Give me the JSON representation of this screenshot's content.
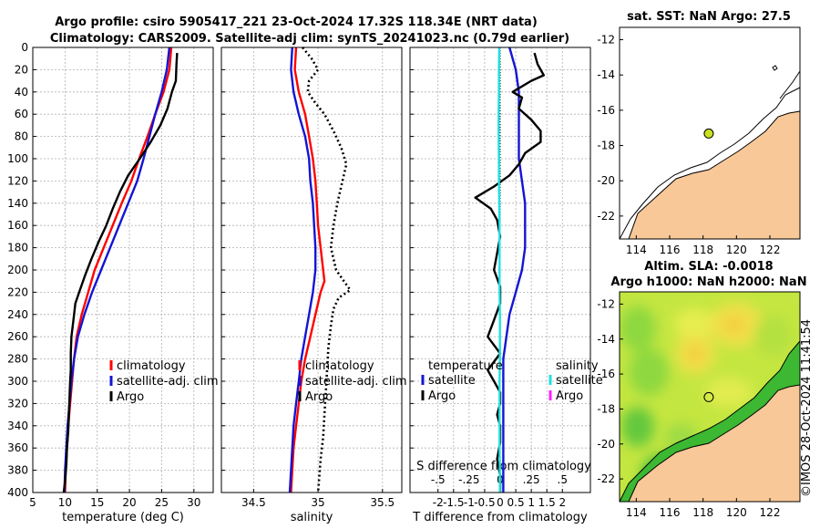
{
  "titles": {
    "main1": "Argo profile: csiro 5905417_221 23-Oct-2024 17.32S 118.34E (NRT data)",
    "main2": "Climatology: CARS2009. Satellite-adj clim: synTS_20241023.nc (0.79d earlier)",
    "map1": "sat. SST: NaN Argo: 27.5",
    "map2a": "Altim. SLA: -0.0018",
    "map2b": "Argo h1000: NaN h2000: NaN",
    "stamp": "©IMOS 28-Oct-2024 11:41:54"
  },
  "colors": {
    "clim": "#ff0000",
    "sat": "#1414d4",
    "argo": "#000000",
    "cyan": "#22e0e0",
    "magenta": "#ff20ff",
    "land": "#f8c898",
    "sea": "#ffffff"
  },
  "chart_data": [
    {
      "type": "line",
      "id": "temperature",
      "xlabel": "temperature (deg C)",
      "ylabel": "",
      "xlim": [
        5,
        33
      ],
      "ylim": [
        400,
        0
      ],
      "xticks": [
        5,
        10,
        15,
        20,
        25,
        30
      ],
      "yticks": [
        0,
        20,
        40,
        60,
        80,
        100,
        120,
        140,
        160,
        180,
        200,
        220,
        240,
        260,
        280,
        300,
        320,
        340,
        360,
        380,
        400
      ],
      "legend": [
        "climatology",
        "satellite-adj. clim",
        "Argo"
      ],
      "series": [
        {
          "name": "climatology",
          "color": "clim",
          "dashed": false,
          "depth": [
            0,
            20,
            40,
            60,
            80,
            100,
            120,
            140,
            160,
            180,
            200,
            220,
            240,
            260,
            280,
            300,
            320,
            340,
            360,
            380,
            400
          ],
          "values": [
            26.5,
            26.2,
            25.3,
            24.0,
            22.8,
            21.5,
            20.3,
            18.8,
            17.4,
            16.0,
            14.6,
            13.6,
            12.6,
            11.8,
            11.4,
            11.1,
            10.8,
            10.5,
            10.3,
            10.1,
            10.0
          ]
        },
        {
          "name": "satellite-adj. clim",
          "color": "sat",
          "dashed": false,
          "depth": [
            0,
            20,
            40,
            60,
            80,
            100,
            120,
            140,
            160,
            180,
            200,
            220,
            240,
            260,
            280,
            300,
            320,
            340,
            360,
            380,
            400
          ],
          "values": [
            26.2,
            25.8,
            25.0,
            24.0,
            23.1,
            22.2,
            21.2,
            19.8,
            18.4,
            17.0,
            15.6,
            14.2,
            13.0,
            12.0,
            11.4,
            11.0,
            10.7,
            10.4,
            10.2,
            10.0,
            9.9
          ]
        },
        {
          "name": "Argo",
          "color": "argo",
          "dashed": false,
          "depth": [
            5,
            15,
            30,
            40,
            55,
            70,
            85,
            100,
            115,
            130,
            145,
            160,
            175,
            190,
            205,
            220,
            230,
            245,
            260,
            275,
            290,
            300,
            315,
            330,
            345,
            360,
            375,
            390,
            400
          ],
          "values": [
            27.4,
            27.3,
            27.2,
            26.6,
            25.9,
            24.8,
            23.3,
            21.6,
            19.8,
            18.5,
            17.4,
            16.4,
            15.2,
            14.1,
            13.1,
            12.2,
            11.6,
            11.3,
            11.0,
            10.9,
            10.9,
            10.8,
            10.7,
            10.6,
            10.5,
            10.3,
            10.2,
            10.0,
            9.8
          ]
        }
      ]
    },
    {
      "type": "line",
      "id": "salinity",
      "xlabel": "salinity",
      "xlim": [
        34.25,
        35.65
      ],
      "ylim": [
        400,
        0
      ],
      "xticks": [
        34.5,
        35,
        35.5
      ],
      "legend": [
        "climatology",
        "satellite-adj. clim",
        "Argo"
      ],
      "series": [
        {
          "name": "climatology",
          "color": "clim",
          "dashed": false,
          "depth": [
            0,
            20,
            40,
            60,
            80,
            100,
            120,
            140,
            160,
            180,
            200,
            210,
            220,
            240,
            260,
            280,
            300,
            320,
            340,
            360,
            380,
            400
          ],
          "values": [
            34.83,
            34.82,
            34.85,
            34.9,
            34.93,
            34.96,
            34.98,
            34.99,
            35.0,
            35.02,
            35.04,
            35.05,
            35.02,
            34.98,
            34.94,
            34.9,
            34.87,
            34.85,
            34.83,
            34.81,
            34.8,
            34.79
          ]
        },
        {
          "name": "satellite-adj. clim",
          "color": "sat",
          "dashed": false,
          "depth": [
            0,
            20,
            40,
            60,
            80,
            100,
            120,
            140,
            160,
            180,
            200,
            220,
            240,
            260,
            280,
            300,
            320,
            340,
            360,
            380,
            400
          ],
          "values": [
            34.8,
            34.79,
            34.81,
            34.85,
            34.9,
            34.93,
            34.94,
            34.96,
            34.97,
            34.98,
            34.98,
            34.96,
            34.93,
            34.9,
            34.87,
            34.85,
            34.83,
            34.81,
            34.8,
            34.79,
            34.78
          ]
        },
        {
          "name": "Argo",
          "color": "argo",
          "dashed": true,
          "depth": [
            0,
            10,
            20,
            30,
            40,
            50,
            60,
            75,
            90,
            105,
            120,
            140,
            160,
            180,
            200,
            210,
            218,
            225,
            235,
            250,
            270,
            290,
            310,
            330,
            350,
            370,
            385,
            400
          ],
          "values": [
            34.88,
            34.95,
            35.0,
            34.93,
            34.92,
            34.98,
            35.05,
            35.12,
            35.18,
            35.22,
            35.19,
            35.15,
            35.12,
            35.1,
            35.14,
            35.2,
            35.25,
            35.16,
            35.12,
            35.1,
            35.08,
            35.07,
            35.06,
            35.05,
            35.04,
            35.02,
            35.01,
            35.0
          ]
        }
      ]
    },
    {
      "type": "line",
      "id": "difference",
      "xlabel": "T difference from climatology",
      "xlabel_top": "S difference from climatology",
      "xlim": [
        -2.9,
        2.9
      ],
      "ylim": [
        400,
        0
      ],
      "xticks": [
        -2,
        -1.5,
        -1,
        -0.5,
        0,
        0.5,
        1,
        1.5,
        2
      ],
      "xticks_top": [
        -0.5,
        -0.25,
        0,
        0.25,
        0.5
      ],
      "legend_left_title": "temperature",
      "legend_right_title": "salinity",
      "legend_left": [
        "satellite",
        "Argo"
      ],
      "legend_right": [
        "satellite",
        "Argo"
      ],
      "series": [
        {
          "name": "temperature satellite",
          "color": "sat",
          "dashed": false,
          "depth": [
            0,
            20,
            40,
            60,
            80,
            100,
            120,
            140,
            160,
            180,
            200,
            220,
            240,
            260,
            280,
            300,
            320,
            340,
            360,
            380,
            400
          ],
          "values": [
            0.3,
            0.5,
            0.6,
            0.6,
            0.6,
            0.6,
            0.7,
            0.8,
            0.8,
            0.8,
            0.7,
            0.5,
            0.3,
            0.2,
            0.1,
            0.1,
            0.1,
            0.1,
            0.1,
            0.1,
            0.1
          ]
        },
        {
          "name": "temperature Argo",
          "color": "argo",
          "dashed": false,
          "depth": [
            5,
            15,
            25,
            30,
            40,
            45,
            55,
            65,
            75,
            85,
            95,
            105,
            115,
            125,
            135,
            145,
            155,
            170,
            185,
            200,
            215,
            230,
            245,
            260,
            275,
            290,
            300,
            310,
            320,
            330,
            340,
            355,
            370,
            385,
            400
          ],
          "values": [
            1.1,
            1.2,
            1.4,
            1.0,
            0.4,
            0.7,
            0.6,
            1.0,
            1.3,
            1.3,
            0.8,
            0.6,
            0.3,
            -0.2,
            -0.8,
            -0.3,
            -0.1,
            0.0,
            -0.1,
            -0.2,
            0.0,
            0.0,
            -0.2,
            -0.4,
            0.0,
            -0.4,
            -0.2,
            0.0,
            0.0,
            -0.1,
            0.0,
            0.0,
            -0.1,
            0.0,
            0.0
          ]
        },
        {
          "name": "salinity satellite",
          "color": "cyan",
          "dashed": false,
          "depth": [
            0,
            20,
            40,
            60,
            80,
            100,
            120,
            140,
            160,
            180,
            200,
            220,
            240,
            260,
            280,
            300,
            320,
            340,
            360,
            380,
            400
          ],
          "values": [
            -0.03,
            -0.04,
            -0.04,
            -0.05,
            -0.05,
            -0.04,
            -0.04,
            -0.03,
            -0.02,
            -0.02,
            -0.02,
            -0.02,
            -0.01,
            -0.01,
            -0.01,
            -0.02,
            -0.02,
            -0.02,
            -0.02,
            -0.01,
            -0.01
          ]
        }
      ]
    },
    {
      "type": "map",
      "id": "sst-map",
      "title": "sat. SST: NaN Argo: 27.5",
      "xticks": [
        114,
        116,
        118,
        120,
        122
      ],
      "yticks": [
        -12,
        -14,
        -16,
        -18,
        -20,
        -22
      ],
      "xlim": [
        113,
        123.8
      ],
      "ylim": [
        -23.3,
        -11.3
      ],
      "marker": {
        "lon": 118.34,
        "lat": -17.32,
        "color": "#c8e020"
      }
    },
    {
      "type": "heatmap",
      "id": "sla-map",
      "title": "Altim. SLA: -0.0018 / Argo h1000: NaN h2000: NaN",
      "xticks": [
        114,
        116,
        118,
        120,
        122
      ],
      "yticks": [
        -12,
        -14,
        -16,
        -18,
        -20,
        -22
      ],
      "xlim": [
        113,
        123.8
      ],
      "ylim": [
        -23.3,
        -11.3
      ],
      "marker": {
        "lon": 118.34,
        "lat": -17.32
      }
    }
  ]
}
